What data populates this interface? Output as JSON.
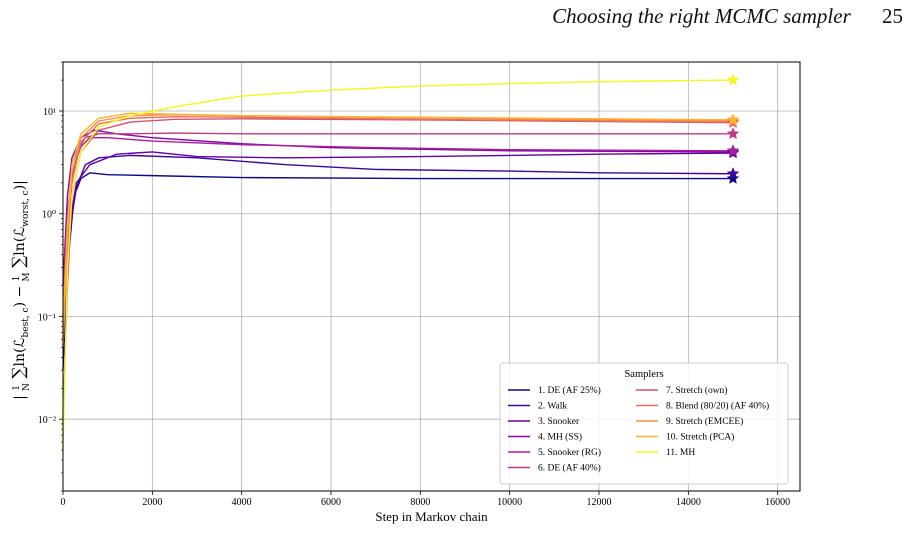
{
  "running_head": {
    "title": "Choosing the right MCMC sampler",
    "page": "25"
  },
  "chart_data": {
    "type": "line",
    "title": "",
    "xlabel": "Step in Markov chain",
    "ylabel": "|1/N Σ ln(L_best,c) − 1/M Σ ln(L_worst,c)|",
    "xlim": [
      0,
      16500
    ],
    "ylim": [
      0.002,
      30
    ],
    "yscale": "log",
    "grid": true,
    "x_ticks": [
      0,
      2000,
      4000,
      6000,
      8000,
      10000,
      12000,
      14000,
      16000
    ],
    "y_ticks": [
      0.01,
      0.1,
      1,
      10
    ],
    "y_tick_labels": [
      "10⁻²",
      "10⁻¹",
      "10⁰",
      "10¹"
    ],
    "legend": {
      "title": "Samplers",
      "position": "lower-right",
      "columns": 2
    },
    "series": [
      {
        "name": "1. DE (AF 25%)",
        "color": "#0d0887",
        "end_value": 2.2,
        "x": [
          0,
          100,
          250,
          400,
          600,
          1000,
          2000,
          4000,
          8000,
          12000,
          15000
        ],
        "y": [
          0.03,
          0.3,
          1.5,
          2.2,
          2.5,
          2.4,
          2.35,
          2.25,
          2.2,
          2.2,
          2.2
        ]
      },
      {
        "name": "2. Walk",
        "color": "#3e049c",
        "end_value": 2.45,
        "x": [
          0,
          100,
          300,
          500,
          800,
          1500,
          3000,
          5000,
          7000,
          10000,
          12000,
          15000
        ],
        "y": [
          0.06,
          0.5,
          1.8,
          3.0,
          3.5,
          3.7,
          3.5,
          3.0,
          2.7,
          2.6,
          2.5,
          2.45
        ]
      },
      {
        "name": "3. Snooker",
        "color": "#6300a7",
        "end_value": 3.9,
        "x": [
          0,
          150,
          300,
          600,
          1200,
          2000,
          3000,
          5000,
          8000,
          12000,
          15000
        ],
        "y": [
          0.1,
          0.8,
          2.0,
          3.0,
          3.8,
          4.0,
          3.6,
          3.5,
          3.6,
          3.8,
          3.9
        ]
      },
      {
        "name": "4. MH (SS)",
        "color": "#8606a6",
        "end_value": 4.0,
        "x": [
          0,
          100,
          200,
          400,
          700,
          1200,
          2000,
          4000,
          6000,
          10000,
          15000
        ],
        "y": [
          0.2,
          1.5,
          3.5,
          5.5,
          6.5,
          6.0,
          5.5,
          4.8,
          4.4,
          4.1,
          4.0
        ]
      },
      {
        "name": "5. Snooker (RG)",
        "color": "#a62098",
        "end_value": 4.1,
        "x": [
          0,
          100,
          200,
          400,
          600,
          1000,
          2000,
          4000,
          7000,
          10000,
          15000
        ],
        "y": [
          0.2,
          1.0,
          2.5,
          4.5,
          5.5,
          5.5,
          5.1,
          4.7,
          4.4,
          4.2,
          4.1
        ]
      },
      {
        "name": "6. DE (AF 40%)",
        "color": "#c03a83",
        "end_value": 6.0,
        "x": [
          0,
          100,
          200,
          300,
          500,
          800,
          1500,
          2500,
          4000,
          8000,
          15000
        ],
        "y": [
          0.1,
          0.8,
          2.0,
          4.0,
          5.5,
          6.0,
          6.0,
          6.1,
          6.0,
          6.0,
          6.0
        ]
      },
      {
        "name": "7. Stretch (own)",
        "color": "#d5546e",
        "end_value": 7.7,
        "x": [
          0,
          100,
          200,
          400,
          800,
          1500,
          2500,
          4000,
          8000,
          12000,
          15000
        ],
        "y": [
          0.01,
          0.2,
          1.5,
          4.0,
          6.5,
          7.8,
          8.3,
          8.4,
          8.2,
          7.9,
          7.7
        ]
      },
      {
        "name": "8. Blend (80/20) (AF 40%)",
        "color": "#e76f5a",
        "end_value": 7.8,
        "x": [
          0,
          100,
          200,
          400,
          800,
          1500,
          2500,
          4000,
          8000,
          12000,
          15000
        ],
        "y": [
          0.05,
          0.5,
          2.0,
          5.0,
          7.5,
          8.5,
          8.8,
          8.7,
          8.3,
          8.0,
          7.8
        ]
      },
      {
        "name": "9. Stretch (EMCEE)",
        "color": "#f68d45",
        "end_value": 8.0,
        "x": [
          0,
          100,
          200,
          400,
          800,
          1500,
          2500,
          4000,
          8000,
          12000,
          15000
        ],
        "y": [
          0.05,
          0.6,
          2.5,
          5.5,
          8.0,
          9.0,
          9.2,
          9.0,
          8.6,
          8.2,
          8.0
        ]
      },
      {
        "name": "10. Stretch (PCA)",
        "color": "#fdb32f",
        "end_value": 8.2,
        "x": [
          0,
          100,
          200,
          400,
          800,
          1500,
          2500,
          4000,
          8000,
          12000,
          15000
        ],
        "y": [
          0.08,
          0.8,
          3.0,
          6.0,
          8.5,
          9.5,
          9.3,
          9.0,
          8.7,
          8.4,
          8.2
        ]
      },
      {
        "name": "11. MH",
        "color": "#f0f921",
        "end_value": 20.0,
        "x": [
          0,
          100,
          200,
          400,
          800,
          1500,
          2500,
          4000,
          6000,
          8000,
          10000,
          12000,
          15000
        ],
        "y": [
          0.005,
          0.3,
          1.5,
          4.0,
          7.0,
          9.0,
          11.0,
          14.0,
          16.0,
          17.5,
          18.5,
          19.3,
          20.0
        ]
      }
    ]
  }
}
